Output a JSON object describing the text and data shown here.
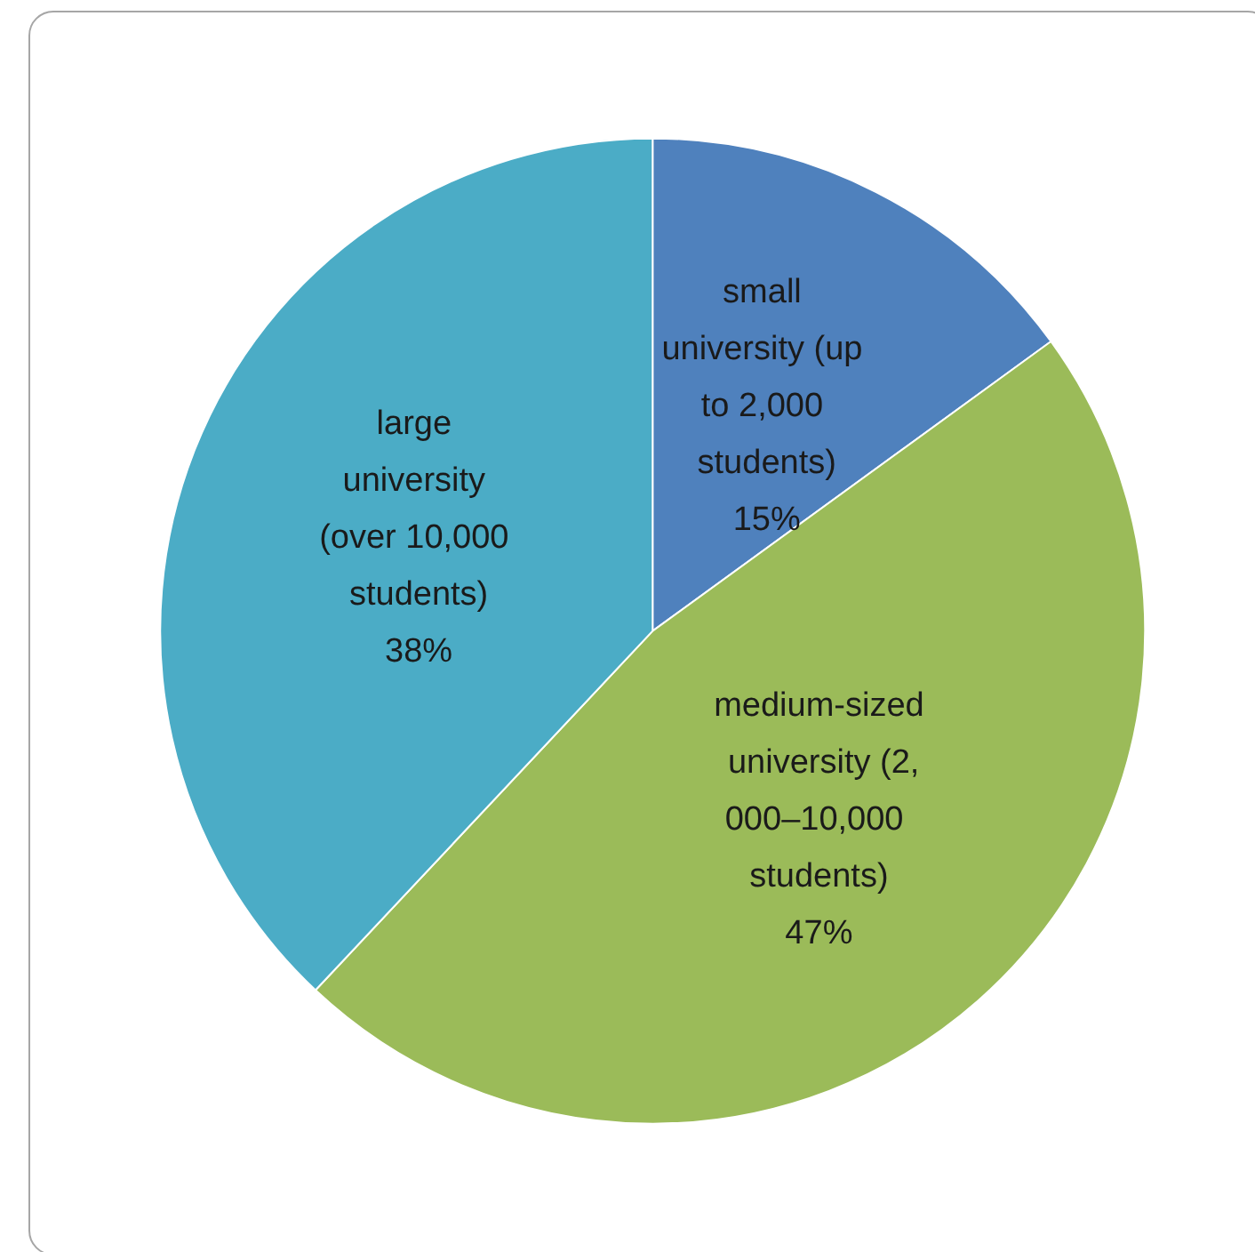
{
  "chart_data": {
    "type": "pie",
    "categories": [
      "small university (up to 2,000 students)",
      "medium-sized university (2,000–10,000 students)",
      "large university (over 10,000 students)"
    ],
    "values": [
      15,
      47,
      38
    ],
    "value_labels": [
      "15%",
      "47%",
      "38%"
    ],
    "colors": [
      "#4f81bd",
      "#9bbb59",
      "#4bacc6"
    ],
    "legend": false
  }
}
